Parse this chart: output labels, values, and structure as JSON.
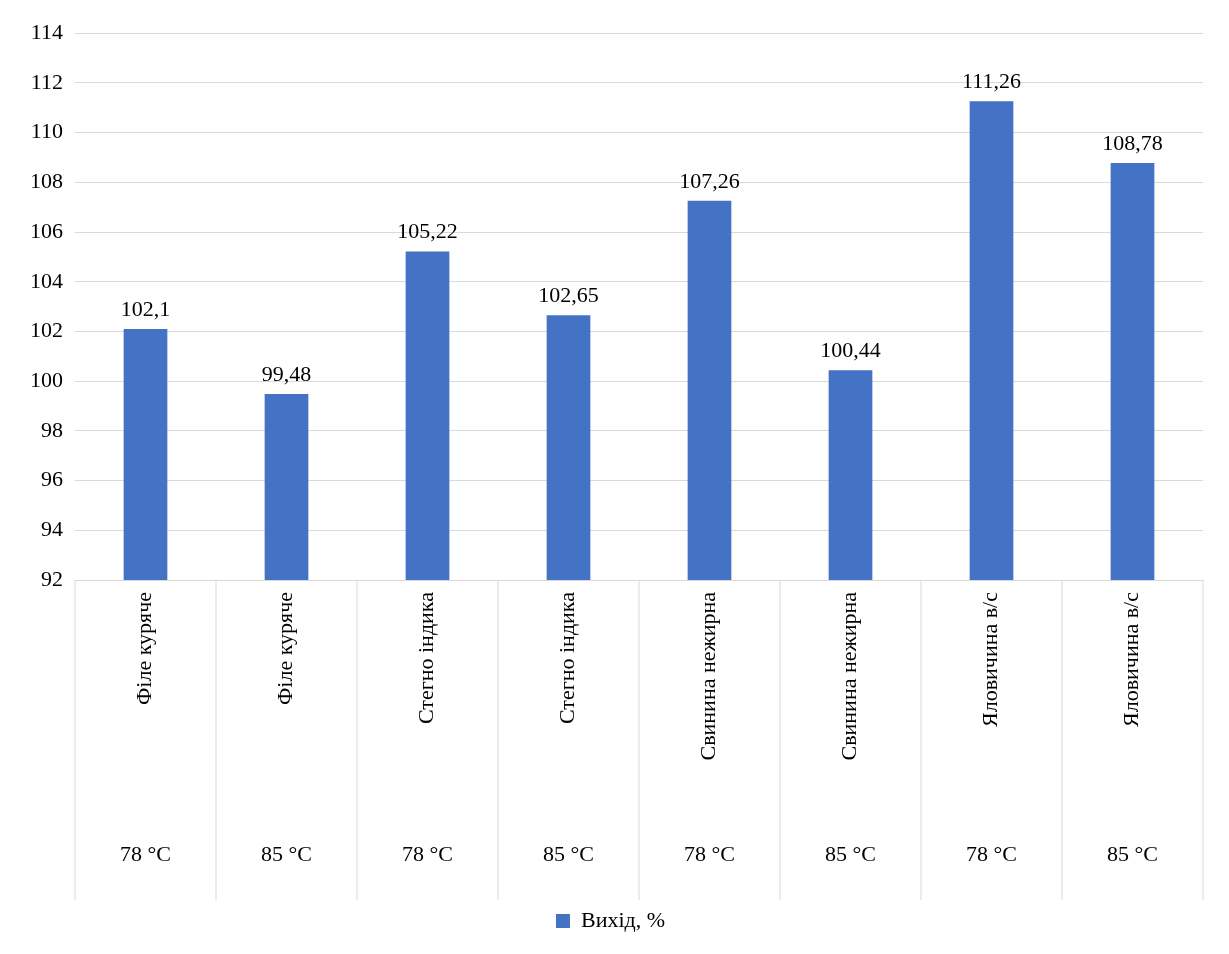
{
  "chart_data": {
    "type": "bar",
    "categories": [
      "Філе куряче\n78 °C",
      "Філе куряче\n85 °C",
      "Стегно індика\n78 °C",
      "Стегно індика\n85 °C",
      "Свинина нежирна\n78 °C",
      "Свинина нежирна\n85 °C",
      "Яловичина в/с\n78 °C",
      "Яловичина в/с\n85 °C"
    ],
    "series": [
      {
        "name": "Вихід, %",
        "color": "#4472c4",
        "values": [
          102.1,
          99.48,
          105.22,
          102.65,
          107.26,
          100.44,
          111.26,
          108.78
        ]
      }
    ],
    "value_labels": [
      "102,1",
      "99,48",
      "105,22",
      "102,65",
      "107,26",
      "100,44",
      "111,26",
      "108,78"
    ],
    "ylim": [
      92,
      114
    ],
    "yticks": [
      92,
      94,
      96,
      98,
      100,
      102,
      104,
      106,
      108,
      110,
      112,
      114
    ],
    "grid": "y",
    "legend": "bottom"
  }
}
